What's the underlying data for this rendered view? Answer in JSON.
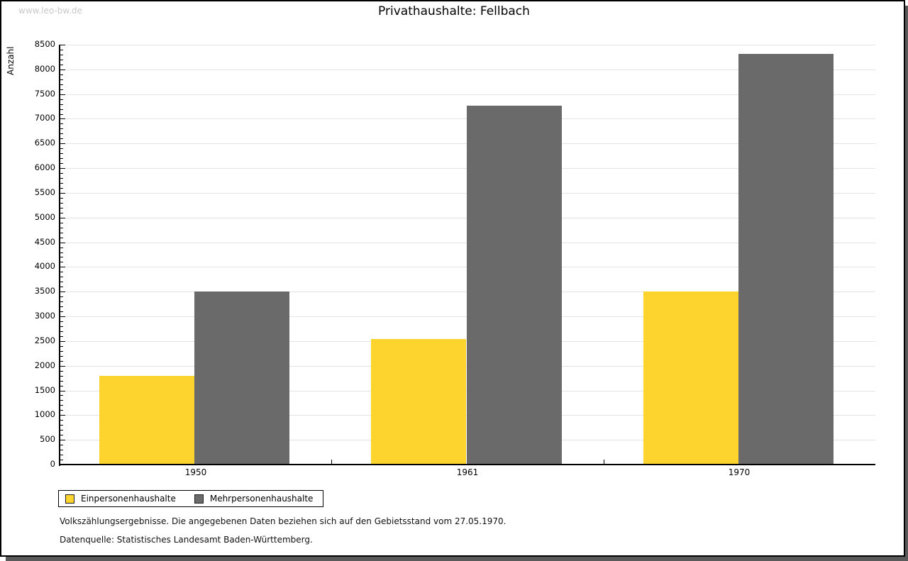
{
  "watermark": "www.leo-bw.de",
  "title": "Privathaushalte: Fellbach",
  "footnotes": [
    "Volkszählungsergebnisse. Die angegebenen Daten beziehen sich auf den Gebietsstand vom 27.05.1970.",
    "Datenquelle: Statistisches Landesamt Baden-Württemberg."
  ],
  "chart_data": {
    "type": "bar",
    "title": "Privathaushalte: Fellbach",
    "xlabel": "",
    "ylabel": "Anzahl",
    "categories": [
      "1950",
      "1961",
      "1970"
    ],
    "series": [
      {
        "name": "Einpersonenhaushalte",
        "color": "#FCD42D",
        "values": [
          1790,
          2540,
          3510
        ]
      },
      {
        "name": "Mehrpersonenhaushalte",
        "color": "#6A6A6A",
        "values": [
          3500,
          7260,
          8320
        ]
      }
    ],
    "ylim": [
      0,
      8500
    ],
    "ytick_step": 500,
    "minor_tick_step": 100,
    "grid": true,
    "legend_position": "bottom-left"
  }
}
